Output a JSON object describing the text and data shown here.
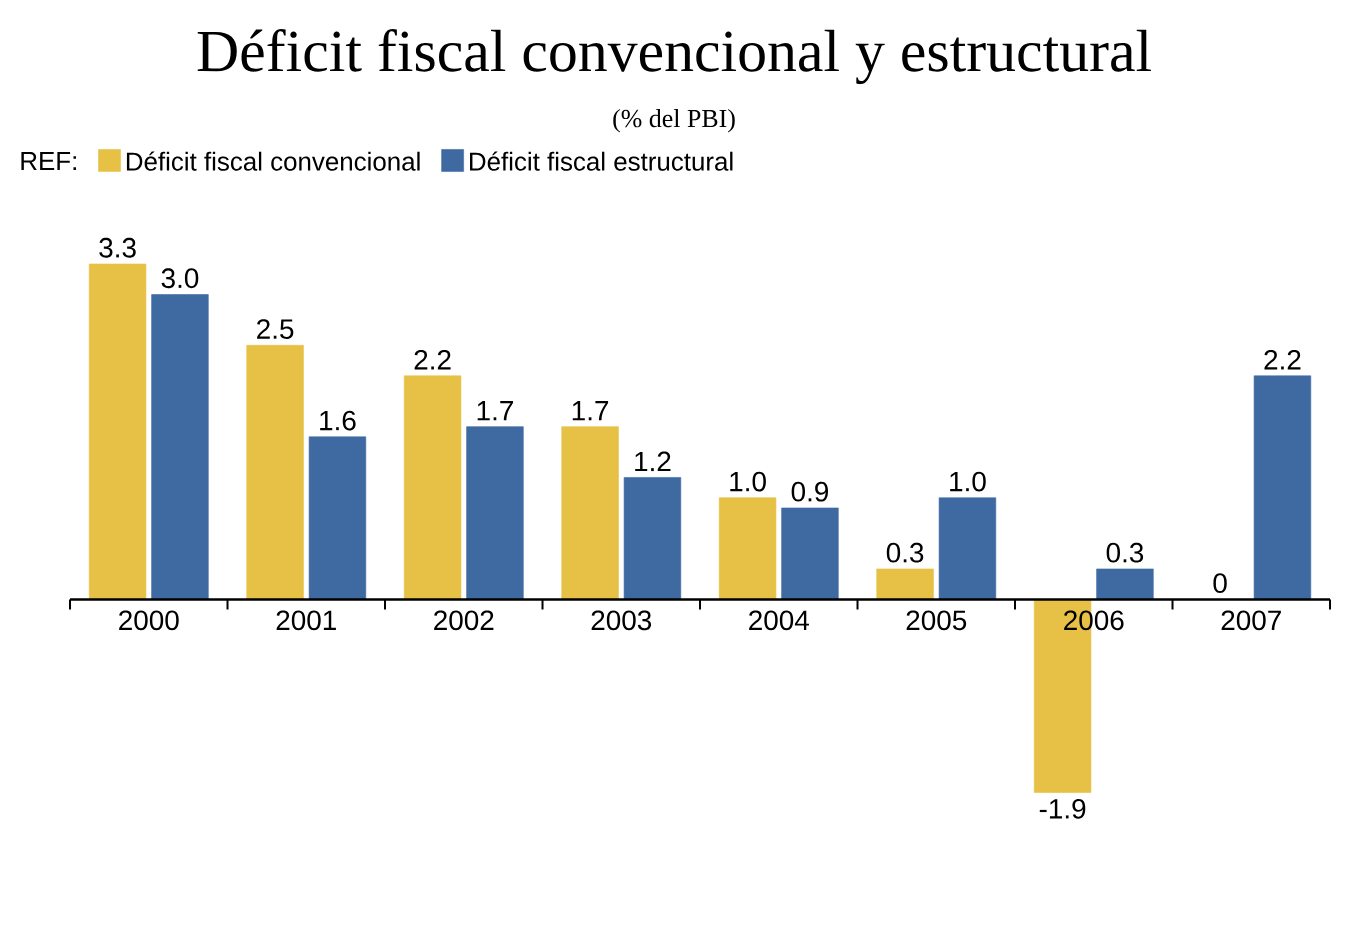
{
  "chart_data": {
    "type": "bar",
    "title": "Déficit fiscal convencional y estructural",
    "subtitle": "(% del PBI)",
    "legend_title": "REF:",
    "legend": "top left",
    "categories": [
      "2000",
      "2001",
      "2002",
      "2003",
      "2004",
      "2005",
      "2006",
      "2007"
    ],
    "series": [
      {
        "name": "Déficit fiscal convencional",
        "color": "#e6c145",
        "values": [
          3.3,
          2.5,
          2.2,
          1.7,
          1.0,
          0.3,
          -1.9,
          0
        ],
        "value_labels": [
          "3.3",
          "2.5",
          "2.2",
          "1.7",
          "1.0",
          "0.3",
          "-1.9",
          "0"
        ]
      },
      {
        "name": "Déficit fiscal estructural",
        "color": "#3f6aa1",
        "values": [
          3.0,
          1.6,
          1.7,
          1.2,
          0.9,
          1.0,
          0.3,
          2.2
        ],
        "value_labels": [
          "3.0",
          "1.6",
          "1.7",
          "1.2",
          "0.9",
          "1.0",
          "0.3",
          "2.2"
        ]
      }
    ],
    "grid": false
  }
}
